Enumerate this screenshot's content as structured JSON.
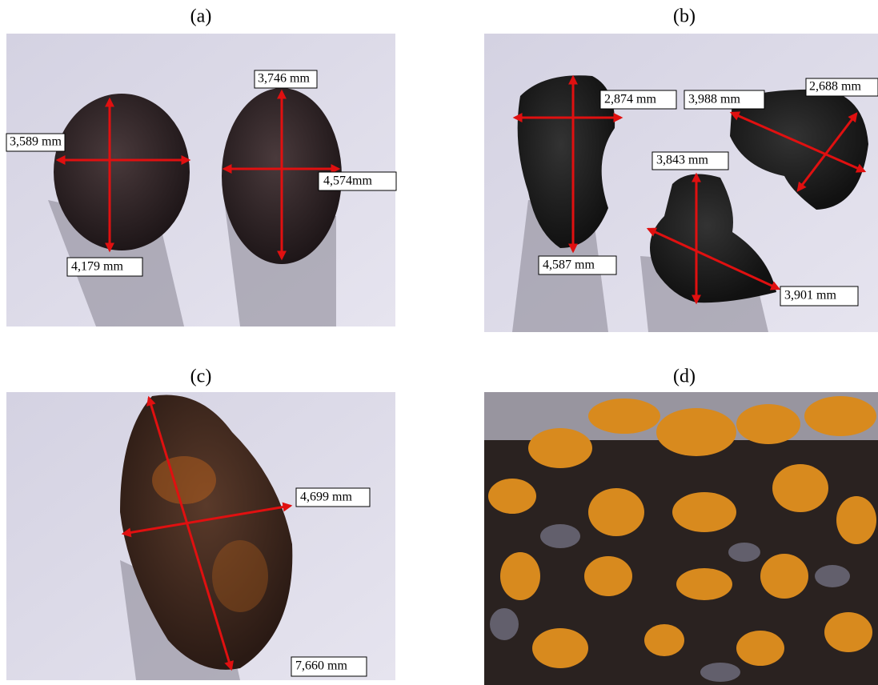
{
  "panels": [
    {
      "label": "(a)",
      "measurements": [
        "3,589 mm",
        "3,746 mm",
        "4,574mm",
        "4,179 mm"
      ]
    },
    {
      "label": "(b)",
      "measurements": [
        "2,874 mm",
        "3,988 mm",
        "2,688 mm",
        "3,843 mm",
        "4,587 mm",
        "3,901 mm"
      ]
    },
    {
      "label": "(c)",
      "measurements": [
        "4,699 mm",
        "7,660 mm"
      ]
    },
    {
      "label": "(d)",
      "measurements": []
    }
  ]
}
